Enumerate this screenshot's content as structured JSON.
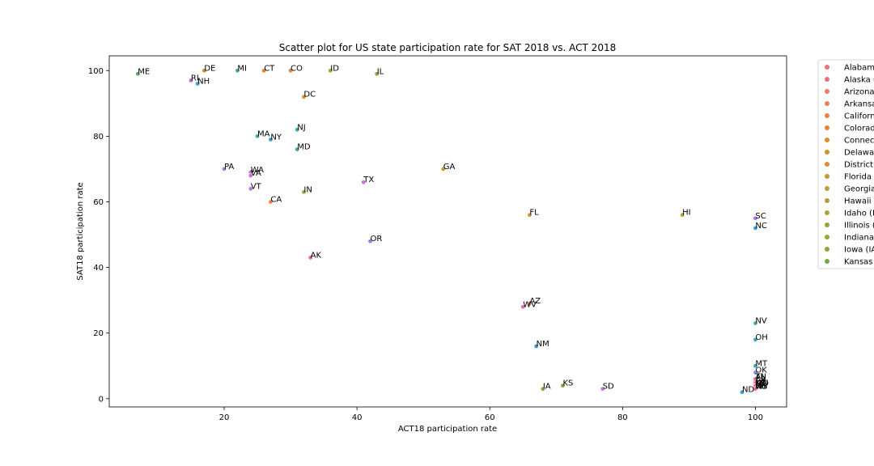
{
  "chart_data": {
    "type": "scatter",
    "title": "Scatter plot for US state participation rate for SAT 2018 vs. ACT 2018",
    "xlabel": "ACT18 participation rate",
    "ylabel": "SAT18 participation rate",
    "xlim": [
      2.7,
      104.7
    ],
    "ylim": [
      -2.5,
      104.5
    ],
    "xticks": [
      20,
      40,
      60,
      80,
      100
    ],
    "yticks": [
      0,
      20,
      40,
      60,
      80,
      100
    ],
    "grid": false,
    "legend_position": "right, outside plot (clipped)",
    "points": [
      {
        "label": "ME",
        "x": 7,
        "y": 99,
        "color": "#5aae61"
      },
      {
        "label": "DE",
        "x": 17,
        "y": 100,
        "color": "#d98c2e"
      },
      {
        "label": "MI",
        "x": 22,
        "y": 100,
        "color": "#4caf73"
      },
      {
        "label": "CT",
        "x": 26,
        "y": 100,
        "color": "#e08a30"
      },
      {
        "label": "CO",
        "x": 30,
        "y": 100,
        "color": "#e8823a"
      },
      {
        "label": "ID",
        "x": 36,
        "y": 100,
        "color": "#a9a435"
      },
      {
        "label": "IL",
        "x": 43,
        "y": 99,
        "color": "#9aa33a"
      },
      {
        "label": "RI",
        "x": 15,
        "y": 97,
        "color": "#b86be0"
      },
      {
        "label": "NH",
        "x": 16,
        "y": 96,
        "color": "#3aa3c9"
      },
      {
        "label": "DC",
        "x": 32,
        "y": 92,
        "color": "#d9902c"
      },
      {
        "label": "NJ",
        "x": 31,
        "y": 82,
        "color": "#38a7b8"
      },
      {
        "label": "MA",
        "x": 25,
        "y": 80,
        "color": "#3cb08c"
      },
      {
        "label": "NY",
        "x": 27,
        "y": 79,
        "color": "#3c9fd6"
      },
      {
        "label": "MD",
        "x": 31,
        "y": 76,
        "color": "#43b07e"
      },
      {
        "label": "PA",
        "x": 20,
        "y": 70,
        "color": "#a67be0"
      },
      {
        "label": "WA",
        "x": 24,
        "y": 69,
        "color": "#d36bd0"
      },
      {
        "label": "VA",
        "x": 24,
        "y": 68,
        "color": "#c074e0"
      },
      {
        "label": "GA",
        "x": 53,
        "y": 70,
        "color": "#bca035"
      },
      {
        "label": "TX",
        "x": 41,
        "y": 66,
        "color": "#c972d6"
      },
      {
        "label": "VT",
        "x": 24,
        "y": 64,
        "color": "#b978e3"
      },
      {
        "label": "IN",
        "x": 32,
        "y": 63,
        "color": "#9aa536"
      },
      {
        "label": "CA",
        "x": 27,
        "y": 60,
        "color": "#ef7f3a"
      },
      {
        "label": "FL",
        "x": 66,
        "y": 56,
        "color": "#c69a34"
      },
      {
        "label": "HI",
        "x": 89,
        "y": 56,
        "color": "#b19f36"
      },
      {
        "label": "SC",
        "x": 100,
        "y": 55,
        "color": "#b876e6"
      },
      {
        "label": "NC",
        "x": 100,
        "y": 52,
        "color": "#3a9de0"
      },
      {
        "label": "OR",
        "x": 42,
        "y": 48,
        "color": "#8a86e8"
      },
      {
        "label": "AK",
        "x": 33,
        "y": 43,
        "color": "#f06c7a"
      },
      {
        "label": "AZ",
        "x": 66,
        "y": 29,
        "color": "#f0766d"
      },
      {
        "label": "WV",
        "x": 65,
        "y": 28,
        "color": "#e667b0"
      },
      {
        "label": "NV",
        "x": 100,
        "y": 23,
        "color": "#3ab0a2"
      },
      {
        "label": "OH",
        "x": 100,
        "y": 18,
        "color": "#3aa7c4"
      },
      {
        "label": "NM",
        "x": 67,
        "y": 16,
        "color": "#3a96d0"
      },
      {
        "label": "MT",
        "x": 100,
        "y": 10,
        "color": "#36b1a0"
      },
      {
        "label": "OK",
        "x": 100,
        "y": 8,
        "color": "#8b8fe6"
      },
      {
        "label": "KS",
        "x": 71,
        "y": 4,
        "color": "#7ea63a"
      },
      {
        "label": "IA",
        "x": 68,
        "y": 3,
        "color": "#88a839"
      },
      {
        "label": "SD",
        "x": 77,
        "y": 3,
        "color": "#c276e0"
      },
      {
        "label": "ND",
        "x": 98,
        "y": 2,
        "color": "#3a9ed6"
      },
      {
        "label": "MO",
        "x": 100,
        "y": 4,
        "color": "#40ab8a"
      },
      {
        "label": "AL",
        "x": 100,
        "y": 6,
        "color": "#f46d7a"
      },
      {
        "label": "AR",
        "x": 100,
        "y": 5,
        "color": "#f07c52"
      },
      {
        "label": "KY",
        "x": 100,
        "y": 4,
        "color": "#6fa83a"
      },
      {
        "label": "LA",
        "x": 100,
        "y": 4,
        "color": "#5aac45"
      },
      {
        "label": "MN",
        "x": 100,
        "y": 4,
        "color": "#3ab091"
      },
      {
        "label": "MS",
        "x": 100,
        "y": 3,
        "color": "#3bb38a"
      },
      {
        "label": "NE",
        "x": 100,
        "y": 3,
        "color": "#38afaa"
      },
      {
        "label": "TN",
        "x": 100,
        "y": 6,
        "color": "#ea68b6"
      },
      {
        "label": "UT",
        "x": 100,
        "y": 4,
        "color": "#e16ba8"
      },
      {
        "label": "WI",
        "x": 100,
        "y": 3,
        "color": "#d96e8e"
      },
      {
        "label": "WY",
        "x": 100,
        "y": 3,
        "color": "#f07080"
      }
    ],
    "legend": [
      {
        "label": "Alabama (AL)",
        "color": "#f46d7a"
      },
      {
        "label": "Alaska (AK)",
        "color": "#f06c7a"
      },
      {
        "label": "Arizona (AZ)",
        "color": "#f0766d"
      },
      {
        "label": "Arkansas (AR)",
        "color": "#f07c52"
      },
      {
        "label": "California (CA)",
        "color": "#ef7f3a"
      },
      {
        "label": "Colorado (CO)",
        "color": "#e8823a"
      },
      {
        "label": "Connecticut (CT)",
        "color": "#e08a30"
      },
      {
        "label": "Delaware (DE)",
        "color": "#d98c2e"
      },
      {
        "label": "District of Columbia (DC)",
        "color": "#d9902c"
      },
      {
        "label": "Florida (FL)",
        "color": "#c69a34"
      },
      {
        "label": "Georgia (GA)",
        "color": "#bca035"
      },
      {
        "label": "Hawaii (HI)",
        "color": "#b19f36"
      },
      {
        "label": "Idaho (ID)",
        "color": "#a9a435"
      },
      {
        "label": "Illinois (IL)",
        "color": "#9aa33a"
      },
      {
        "label": "Indiana (IN)",
        "color": "#9aa536"
      },
      {
        "label": "Iowa (IA)",
        "color": "#88a839"
      },
      {
        "label": "Kansas (KS)",
        "color": "#7ea63a"
      }
    ]
  }
}
